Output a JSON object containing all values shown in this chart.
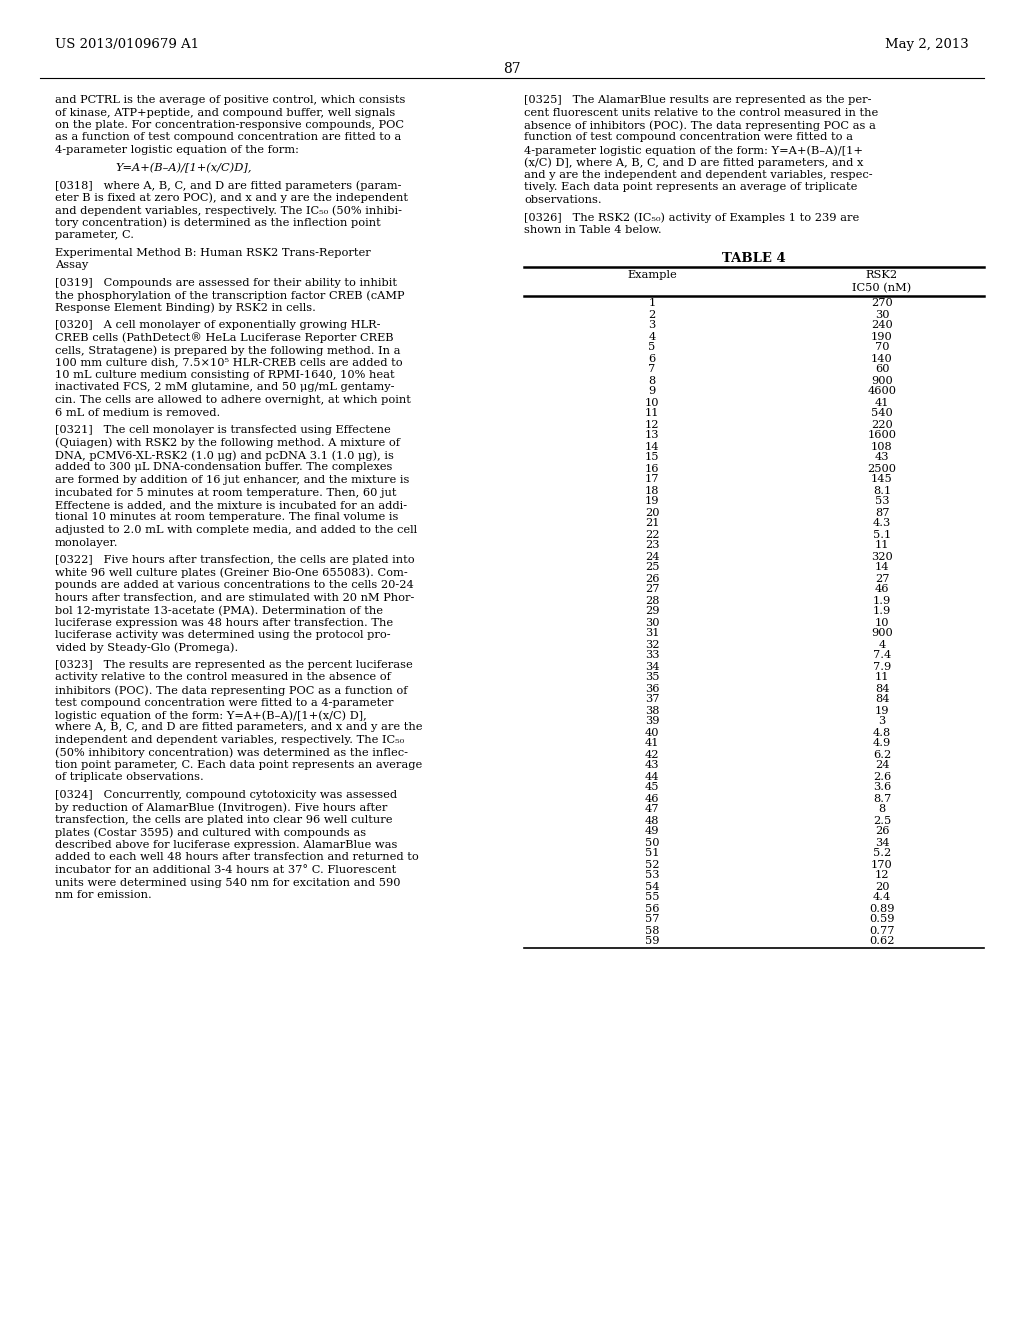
{
  "header_left": "US 2013/0109679 A1",
  "header_right": "May 2, 2013",
  "page_number": "87",
  "background_color": "#ffffff",
  "text_color": "#000000",
  "left_paragraphs": [
    {
      "tag": "body",
      "text": "and PCTRL is the average of positive control, which consists of kinase, ATP+peptide, and compound buffer, well signals on the plate. For concentration-responsive compounds, POC as a function of test compound concentration are fitted to a 4-parameter logistic equation of the form:"
    },
    {
      "tag": "formula",
      "text": "Y=A+(B–A)/[1+(x/C)D],"
    },
    {
      "tag": "body",
      "text": "[0318]   where A, B, C, and D are fitted parameters (param-eter B is fixed at zero POC), and x and y are the independent and dependent variables, respectively. The IC50 (50% inhibi-tory concentration) is determined as the inflection point parameter, C."
    },
    {
      "tag": "heading",
      "text": "Experimental Method B: Human RSK2 Trans-Reporter Assay"
    },
    {
      "tag": "body",
      "text": "[0319]   Compounds are assessed for their ability to inhibit the phosphorylation of the transcription factor CREB (cAMP Response Element Binding) by RSK2 in cells."
    },
    {
      "tag": "body",
      "text": "[0320]   A cell monolayer of exponentially growing HLR-CREB cells (PathDetect® HeLa Luciferase Reporter CREB cells, Stratagene) is prepared by the following method. In a 100 mm culture dish, 7.5×10⁵ HLR-CREB cells are added to 10 mL culture medium consisting of RPMI-1640, 10% heat inactivated FCS, 2 mM glutamine, and 50 μg/mL gentamy-cin. The cells are allowed to adhere overnight, at which point 6 mL of medium is removed."
    },
    {
      "tag": "body",
      "text": "[0321]   The cell monolayer is transfected using Effectene (Quiagen) with RSK2 by the following method. A mixture of DNA, pCMV6-XL-RSK2 (1.0 μg) and pcDNA 3.1 (1.0 μg), is added to 300 μL DNA-condensation buffer. The complexes are formed by addition of 16 jut enhancer, and the mixture is incubated for 5 minutes at room temperature. Then, 60 jut Effectene is added, and the mixture is incubated for an addi-tional 10 minutes at room temperature. The final volume is adjusted to 2.0 mL with complete media, and added to the cell monolayer."
    },
    {
      "tag": "body",
      "text": "[0322]   Five hours after transfection, the cells are plated into white 96 well culture plates (Greiner Bio-One 655083). Com-pounds are added at various concentrations to the cells 20-24 hours after transfection, and are stimulated with 20 nM Phor-bol 12-myristate 13-acetate (PMA). Determination of the luciferase expression was 48 hours after transfection. The luciferase activity was determined using the protocol pro-vided by Steady-Glo (Promega)."
    },
    {
      "tag": "body",
      "text": "[0323]   The results are represented as the percent luciferase activity relative to the control measured in the absence of inhibitors (POC). The data representing POC as a function of test compound concentration were fitted to a 4-parameter logistic equation of the form: Y=A+(B–A)/[1+(x/C) D], where A, B, C, and D are fitted parameters, and x and y are the independent and dependent variables, respectively. The IC50 (50% inhibitory concentration) was determined as the infle-tion point parameter, C. Each data point represents an average of triplicate observations."
    },
    {
      "tag": "body",
      "text": "[0324]   Concurrently, compound cytotoxicity was assessed by reduction of AlamarBlue (Invitrogen). Five hours after transfection, the cells are plated into clear 96 well culture plates (Costar 3595) and cultured with compounds as described above for luciferase expression. AlamarBlue was added to each well 48 hours after transfection and returned to incubator for an additional 3-4 hours at 37° C. Fluorescent units were determined using 540 nm for excitation and 590 nm for emission."
    }
  ],
  "right_paragraphs": [
    {
      "tag": "body",
      "text": "[0325]   The AlamarBlue results are represented as the per-cent fluorescent units relative to the control measured in the absence of inhibitors (POC). The data representing POC as a function of test compound concentration were fitted to a 4-parameter logistic equation of the form: Y=A+(B–A)/[1+(x/C) D], where A, B, C, and D are fitted parameters, and x and y are the independent and dependent variables, respec-tively. Each data point represents an average of triplicate observations."
    },
    {
      "tag": "body",
      "text": "[0326]   The RSK2 (IC50) activity of Examples 1 to 239 are shown in Table 4 below."
    }
  ],
  "table_title": "TABLE 4",
  "table_col1_header": "Example",
  "table_col2_header_line1": "RSK2",
  "table_col2_header_line2": "IC50 (nM)",
  "table_data": [
    [
      1,
      "270"
    ],
    [
      2,
      "30"
    ],
    [
      3,
      "240"
    ],
    [
      4,
      "190"
    ],
    [
      5,
      "70"
    ],
    [
      6,
      "140"
    ],
    [
      7,
      "60"
    ],
    [
      8,
      "900"
    ],
    [
      9,
      "4600"
    ],
    [
      10,
      "41"
    ],
    [
      11,
      "540"
    ],
    [
      12,
      "220"
    ],
    [
      13,
      "1600"
    ],
    [
      14,
      "108"
    ],
    [
      15,
      "43"
    ],
    [
      16,
      "2500"
    ],
    [
      17,
      "145"
    ],
    [
      18,
      "8.1"
    ],
    [
      19,
      "53"
    ],
    [
      20,
      "87"
    ],
    [
      21,
      "4.3"
    ],
    [
      22,
      "5.1"
    ],
    [
      23,
      "11"
    ],
    [
      24,
      "320"
    ],
    [
      25,
      "14"
    ],
    [
      26,
      "27"
    ],
    [
      27,
      "46"
    ],
    [
      28,
      "1.9"
    ],
    [
      29,
      "1.9"
    ],
    [
      30,
      "10"
    ],
    [
      31,
      "900"
    ],
    [
      32,
      "4"
    ],
    [
      33,
      "7.4"
    ],
    [
      34,
      "7.9"
    ],
    [
      35,
      "11"
    ],
    [
      36,
      "84"
    ],
    [
      37,
      "84"
    ],
    [
      38,
      "19"
    ],
    [
      39,
      "3"
    ],
    [
      40,
      "4.8"
    ],
    [
      41,
      "4.9"
    ],
    [
      42,
      "6.2"
    ],
    [
      43,
      "24"
    ],
    [
      44,
      "2.6"
    ],
    [
      45,
      "3.6"
    ],
    [
      46,
      "8.7"
    ],
    [
      47,
      "8"
    ],
    [
      48,
      "2.5"
    ],
    [
      49,
      "26"
    ],
    [
      50,
      "34"
    ],
    [
      51,
      "5.2"
    ],
    [
      52,
      "170"
    ],
    [
      53,
      "12"
    ],
    [
      54,
      "20"
    ],
    [
      55,
      "4.4"
    ],
    [
      56,
      "0.89"
    ],
    [
      57,
      "0.59"
    ],
    [
      58,
      "0.77"
    ],
    [
      59,
      "0.62"
    ]
  ]
}
